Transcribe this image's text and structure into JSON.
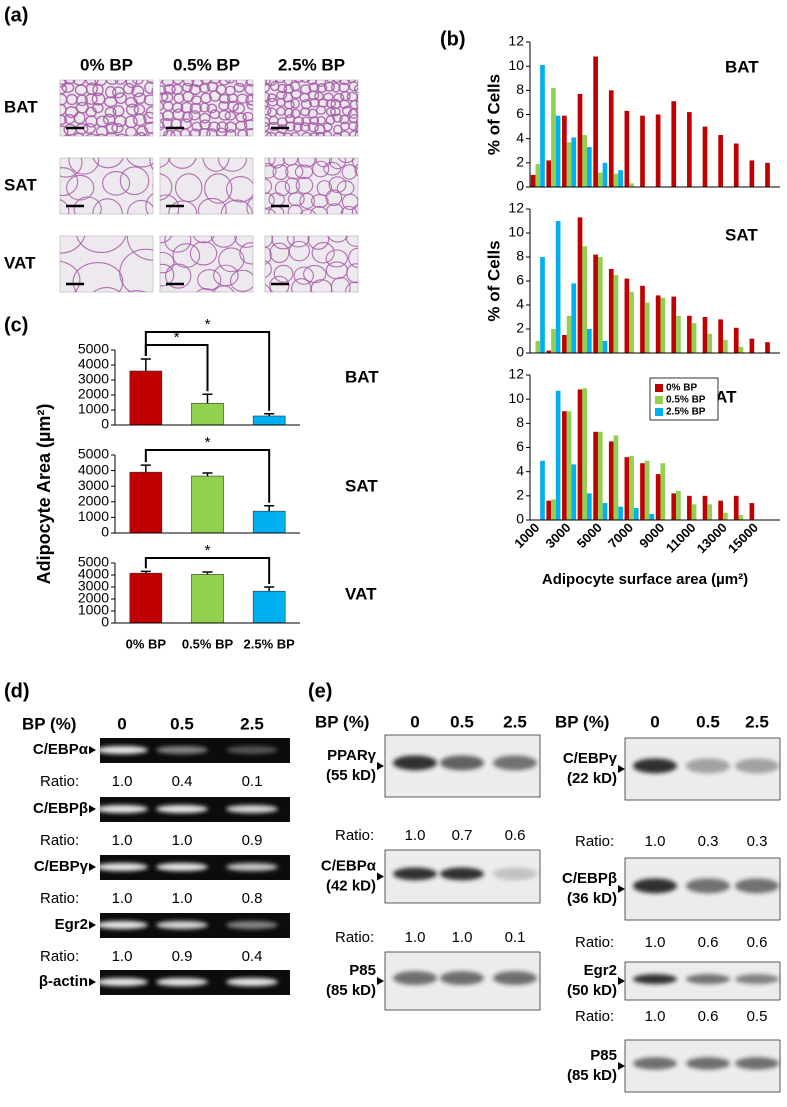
{
  "panel_labels": [
    "(a)",
    "(b)",
    "(c)",
    "(d)",
    "(e)"
  ],
  "panel_a": {
    "columns": [
      "0% BP",
      "0.5% BP",
      "2.5% BP"
    ],
    "rows": [
      "BAT",
      "SAT",
      "VAT"
    ]
  },
  "chart_data": [
    {
      "type": "bar",
      "title": "BAT",
      "ylabel": "% of Cells",
      "categories": [
        null,
        null,
        null,
        null,
        null,
        null,
        null,
        null,
        null,
        null,
        null,
        null,
        null,
        null,
        null,
        null
      ],
      "series": [
        {
          "color": "#c00000",
          "values": [
            1.0,
            2.2,
            5.9,
            7.7,
            10.8,
            8.0,
            6.3,
            5.9,
            6.0,
            7.1,
            6.2,
            5.0,
            4.3,
            3.6,
            2.2,
            2.0
          ]
        },
        {
          "color": "#92d050",
          "values": [
            1.9,
            8.2,
            3.7,
            4.3,
            1.2,
            1.1,
            0.3,
            0,
            0,
            0,
            0,
            0,
            0,
            0,
            0,
            0
          ]
        },
        {
          "color": "#00b0f0",
          "values": [
            10.1,
            5.9,
            4.1,
            3.3,
            2.0,
            1.4,
            0,
            0,
            0,
            0,
            0,
            0,
            0,
            0,
            0,
            0
          ]
        }
      ],
      "ylim": [
        0,
        12
      ],
      "yticks": [
        0,
        2,
        4,
        6,
        8,
        10,
        12
      ]
    },
    {
      "type": "bar",
      "title": "SAT",
      "ylabel": "% of Cells",
      "categories": [
        null,
        null,
        null,
        null,
        null,
        null,
        null,
        null,
        null,
        null,
        null,
        null,
        null,
        null,
        null,
        null
      ],
      "series": [
        {
          "color": "#c00000",
          "values": [
            0,
            0.2,
            1.5,
            11.3,
            8.2,
            7.0,
            6.2,
            5.6,
            4.8,
            4.7,
            3.1,
            3.0,
            2.8,
            2.1,
            1.2,
            0.9
          ]
        },
        {
          "color": "#92d050",
          "values": [
            1.0,
            2.0,
            3.1,
            8.9,
            8.0,
            6.5,
            5.1,
            4.2,
            4.6,
            3.1,
            2.5,
            1.6,
            1.1,
            0.5,
            0,
            0
          ]
        },
        {
          "color": "#00b0f0",
          "values": [
            8.0,
            11.0,
            5.8,
            2.0,
            1.0,
            0,
            0,
            0,
            0,
            0,
            0,
            0,
            0,
            0,
            0,
            0
          ]
        }
      ],
      "ylim": [
        0,
        12
      ],
      "yticks": [
        0,
        2,
        4,
        6,
        8,
        10,
        12
      ]
    },
    {
      "type": "bar",
      "title": "VAT",
      "xlabel": "Adipocyte surface area (µm²)",
      "categories": [
        "1000",
        null,
        "3000",
        null,
        "5000",
        null,
        "7000",
        null,
        "9000",
        null,
        "11000",
        null,
        "13000",
        null,
        "15000",
        null
      ],
      "series": [
        {
          "name": "0% BP",
          "color": "#c00000",
          "values": [
            0,
            1.6,
            9.0,
            10.8,
            7.3,
            6.5,
            5.2,
            4.7,
            3.8,
            2.2,
            2.0,
            2.0,
            1.6,
            2.0,
            1.4,
            0
          ]
        },
        {
          "name": "0.5% BP",
          "color": "#92d050",
          "values": [
            0,
            1.7,
            9.0,
            10.9,
            7.3,
            7.0,
            5.3,
            4.9,
            4.7,
            2.4,
            1.3,
            1.3,
            0.6,
            0.4,
            0,
            0
          ]
        },
        {
          "name": "2.5% BP",
          "color": "#00b0f0",
          "values": [
            4.9,
            10.7,
            4.6,
            2.2,
            1.4,
            1.1,
            1.0,
            0.5,
            0,
            0,
            0,
            0,
            0,
            0,
            0,
            0
          ]
        }
      ],
      "ylim": [
        0,
        12
      ],
      "yticks": [
        0,
        2,
        4,
        6,
        8,
        10,
        12
      ],
      "legend": "upper right"
    },
    {
      "type": "bar",
      "title": "BAT",
      "categories": [
        null,
        null,
        null
      ],
      "values": [
        3600,
        1450,
        600
      ],
      "errors": [
        800,
        600,
        150
      ],
      "colors": [
        "#c00000",
        "#92d050",
        "#00b0f0"
      ],
      "ylim": [
        0,
        5000
      ],
      "yticks": [
        0,
        1000,
        2000,
        3000,
        4000,
        5000
      ],
      "annotations": [
        "*",
        "*"
      ]
    },
    {
      "type": "bar",
      "title": "SAT",
      "ylabel": "Adipocyte Area (µm²)",
      "categories": [
        null,
        null,
        null
      ],
      "values": [
        3900,
        3650,
        1400
      ],
      "errors": [
        450,
        200,
        350
      ],
      "colors": [
        "#c00000",
        "#92d050",
        "#00b0f0"
      ],
      "ylim": [
        0,
        5000
      ],
      "yticks": [
        0,
        1000,
        2000,
        3000,
        4000,
        5000
      ],
      "annotations": [
        "*"
      ]
    },
    {
      "type": "bar",
      "title": "VAT",
      "categories": [
        "0% BP",
        "0.5% BP",
        "2.5% BP"
      ],
      "values": [
        4150,
        4050,
        2650
      ],
      "errors": [
        150,
        200,
        350
      ],
      "colors": [
        "#c00000",
        "#92d050",
        "#00b0f0"
      ],
      "ylim": [
        0,
        5000
      ],
      "yticks": [
        0,
        1000,
        2000,
        3000,
        4000,
        5000
      ],
      "annotations": [
        "*"
      ]
    }
  ],
  "panel_d": {
    "header": "BP (%)",
    "doses": [
      "0",
      "0.5",
      "2.5"
    ],
    "rows": [
      {
        "label": "C/EBPα",
        "ratio_label": "Ratio:",
        "ratios": [
          "1.0",
          "0.4",
          "0.1"
        ]
      },
      {
        "label": "C/EBPβ",
        "ratio_label": "Ratio:",
        "ratios": [
          "1.0",
          "1.0",
          "0.9"
        ]
      },
      {
        "label": "C/EBPγ",
        "ratio_label": "Ratio:",
        "ratios": [
          "1.0",
          "1.0",
          "0.8"
        ]
      },
      {
        "label": "Egr2",
        "ratio_label": "Ratio:",
        "ratios": [
          "1.0",
          "0.9",
          "0.4"
        ]
      },
      {
        "label": "β-actin"
      }
    ]
  },
  "panel_e": {
    "left": {
      "header": "BP (%)",
      "doses": [
        "0",
        "0.5",
        "2.5"
      ],
      "blots": [
        {
          "label": "PPARγ",
          "size": "(55 kD)",
          "ratio_label": "Ratio:",
          "ratios": [
            "1.0",
            "0.7",
            "0.6"
          ]
        },
        {
          "label": "C/EBPα",
          "size": "(42 kD)",
          "ratio_label": "Ratio:",
          "ratios": [
            "1.0",
            "1.0",
            "0.1"
          ]
        },
        {
          "label": "P85",
          "size": "(85 kD)"
        }
      ]
    },
    "right": {
      "header": "BP (%)",
      "doses": [
        "0",
        "0.5",
        "2.5"
      ],
      "blots": [
        {
          "label": "C/EBPγ",
          "size": "(22 kD)",
          "ratio_label": "Ratio:",
          "ratios": [
            "1.0",
            "0.3",
            "0.3"
          ]
        },
        {
          "label": "C/EBPβ",
          "size": "(36 kD)",
          "ratio_label": "Ratio:",
          "ratios": [
            "1.0",
            "0.6",
            "0.6"
          ]
        },
        {
          "label": "Egr2",
          "size": "(50 kD)",
          "ratio_label": "Ratio:",
          "ratios": [
            "1.0",
            "0.6",
            "0.5"
          ]
        },
        {
          "label": "P85",
          "size": "(85 kD)"
        }
      ]
    }
  }
}
